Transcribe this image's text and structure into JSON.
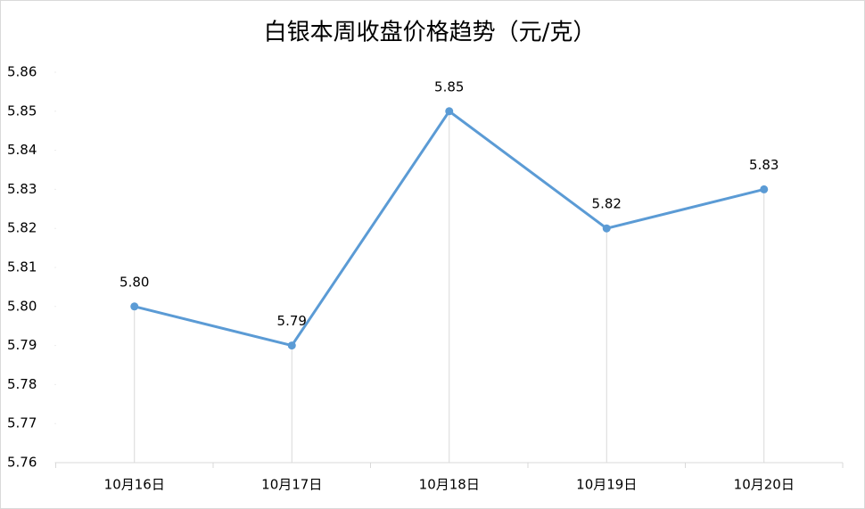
{
  "chart_data": {
    "type": "line",
    "title": "白银本周收盘价格趋势（元/克）",
    "categories": [
      "10月16日",
      "10月17日",
      "10月18日",
      "10月19日",
      "10月20日"
    ],
    "values": [
      5.8,
      5.79,
      5.85,
      5.82,
      5.83
    ],
    "value_labels": [
      "5.80",
      "5.79",
      "5.85",
      "5.82",
      "5.83"
    ],
    "color": "#5b9bd5",
    "ylim": [
      5.76,
      5.86
    ],
    "yticks": [
      5.76,
      5.77,
      5.78,
      5.79,
      {
        "value": 5.8,
        "label": "5.80"
      },
      5.81,
      5.82,
      5.83,
      5.84,
      5.85,
      5.86
    ],
    "drop_lines": true
  }
}
